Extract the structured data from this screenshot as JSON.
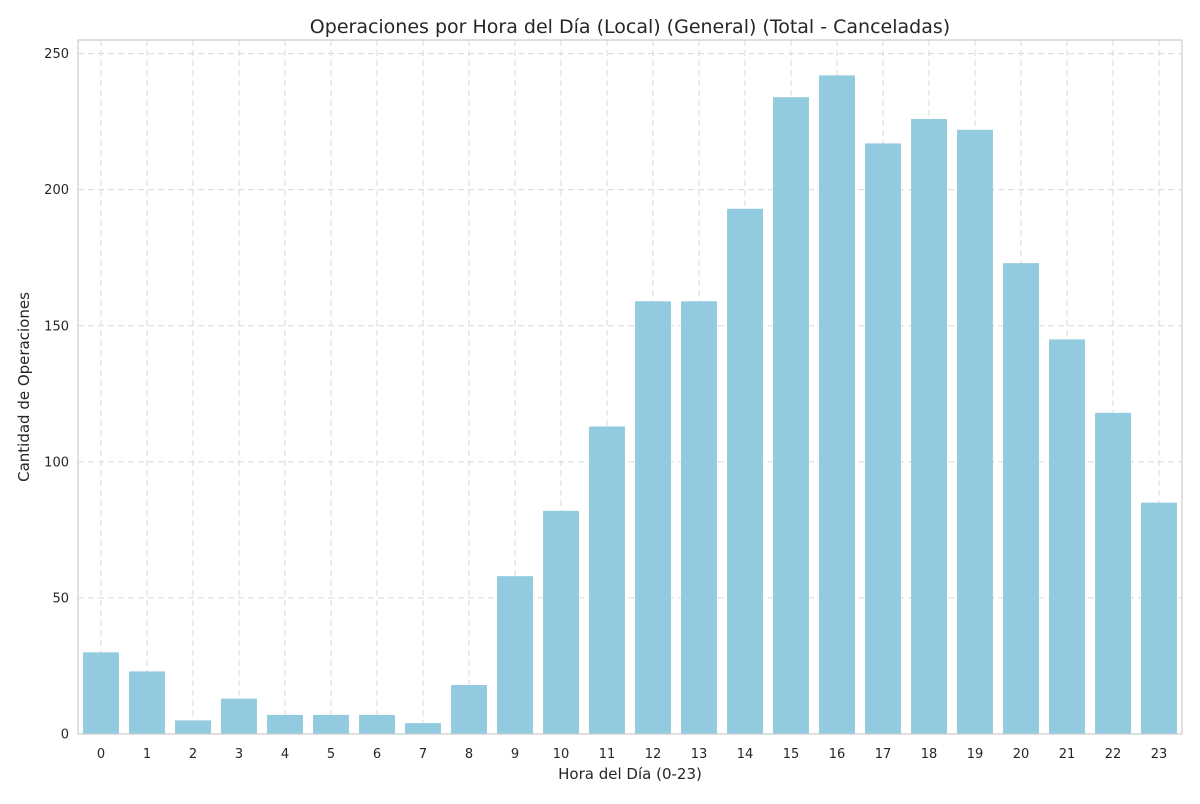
{
  "chart_data": {
    "type": "bar",
    "title": "Operaciones por Hora del Día (Local) (General) (Total - Canceladas)",
    "xlabel": "Hora del Día (0-23)",
    "ylabel": "Cantidad de Operaciones",
    "categories": [
      "0",
      "1",
      "2",
      "3",
      "4",
      "5",
      "6",
      "7",
      "8",
      "9",
      "10",
      "11",
      "12",
      "13",
      "14",
      "15",
      "16",
      "17",
      "18",
      "19",
      "20",
      "21",
      "22",
      "23"
    ],
    "values": [
      30,
      23,
      5,
      13,
      7,
      7,
      7,
      4,
      18,
      58,
      82,
      113,
      159,
      159,
      193,
      234,
      242,
      217,
      226,
      222,
      173,
      145,
      118,
      85
    ],
    "ylim": [
      0,
      255
    ],
    "yticks": [
      0,
      50,
      100,
      150,
      200,
      250
    ],
    "grid": true,
    "bar_color": "#92cadf"
  }
}
